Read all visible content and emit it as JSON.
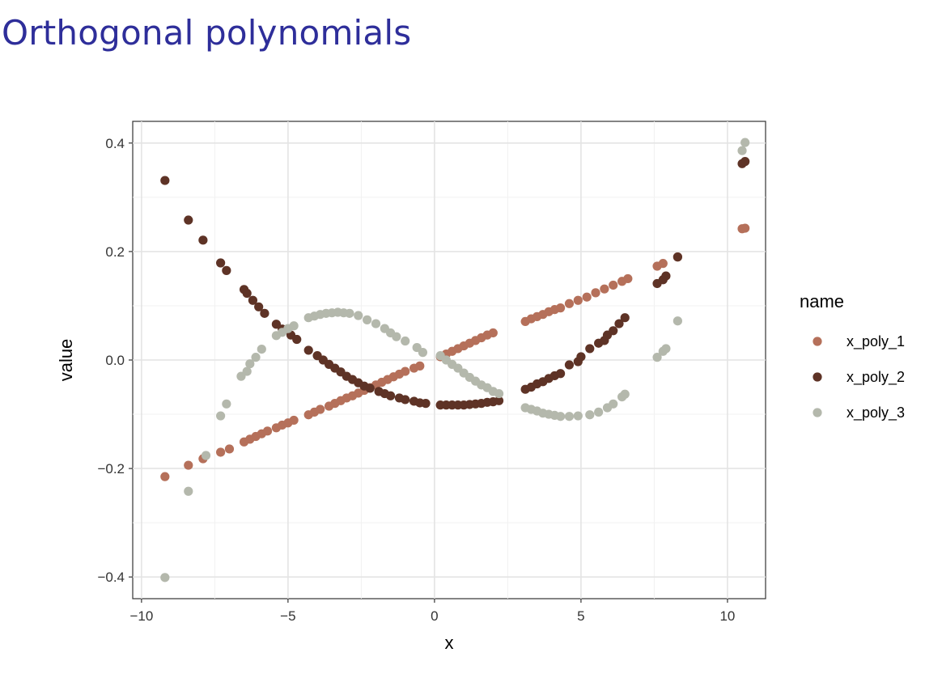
{
  "slide": {
    "title": "Orthogonal polynomials"
  },
  "chart_data": {
    "type": "scatter",
    "title": "",
    "xlabel": "x",
    "ylabel": "value",
    "xlim": [
      -10.3,
      11.3
    ],
    "ylim": [
      -0.44,
      0.44
    ],
    "x_ticks": [
      -10,
      -5,
      0,
      5,
      10
    ],
    "x_tick_labels": [
      "−10",
      "−5",
      "0",
      "5",
      "10"
    ],
    "y_ticks": [
      -0.4,
      -0.2,
      0.0,
      0.2,
      0.4
    ],
    "y_tick_labels": [
      "−0.4",
      "−0.2",
      "0.0",
      "0.2",
      "0.4"
    ],
    "grid": true,
    "legend": {
      "title": "name",
      "position": "right"
    },
    "series": [
      {
        "name": "x_poly_1",
        "color": "#b5705a",
        "points": [
          [
            -9.2,
            -0.215
          ],
          [
            -8.4,
            -0.194
          ],
          [
            -7.9,
            -0.182
          ],
          [
            -7.3,
            -0.17
          ],
          [
            -7.0,
            -0.164
          ],
          [
            -6.5,
            -0.151
          ],
          [
            -6.3,
            -0.146
          ],
          [
            -6.1,
            -0.141
          ],
          [
            -5.9,
            -0.136
          ],
          [
            -5.7,
            -0.131
          ],
          [
            -5.4,
            -0.125
          ],
          [
            -5.2,
            -0.12
          ],
          [
            -5.0,
            -0.116
          ],
          [
            -4.8,
            -0.111
          ],
          [
            -4.3,
            -0.101
          ],
          [
            -4.1,
            -0.096
          ],
          [
            -3.9,
            -0.091
          ],
          [
            -3.6,
            -0.085
          ],
          [
            -3.4,
            -0.08
          ],
          [
            -3.2,
            -0.075
          ],
          [
            -3.0,
            -0.07
          ],
          [
            -2.8,
            -0.066
          ],
          [
            -2.6,
            -0.061
          ],
          [
            -2.4,
            -0.056
          ],
          [
            -2.2,
            -0.051
          ],
          [
            -2.0,
            -0.046
          ],
          [
            -1.8,
            -0.041
          ],
          [
            -1.6,
            -0.036
          ],
          [
            -1.4,
            -0.031
          ],
          [
            -1.2,
            -0.026
          ],
          [
            -1.0,
            -0.021
          ],
          [
            -0.7,
            -0.015
          ],
          [
            -0.5,
            -0.011
          ],
          [
            0.2,
            0.006
          ],
          [
            0.4,
            0.011
          ],
          [
            0.6,
            0.016
          ],
          [
            0.8,
            0.021
          ],
          [
            1.0,
            0.026
          ],
          [
            1.2,
            0.031
          ],
          [
            1.4,
            0.036
          ],
          [
            1.6,
            0.041
          ],
          [
            1.8,
            0.046
          ],
          [
            2.0,
            0.05
          ],
          [
            3.1,
            0.071
          ],
          [
            3.3,
            0.076
          ],
          [
            3.5,
            0.08
          ],
          [
            3.7,
            0.084
          ],
          [
            3.9,
            0.089
          ],
          [
            4.1,
            0.093
          ],
          [
            4.3,
            0.096
          ],
          [
            4.6,
            0.104
          ],
          [
            4.9,
            0.11
          ],
          [
            5.2,
            0.116
          ],
          [
            5.5,
            0.124
          ],
          [
            5.8,
            0.131
          ],
          [
            6.1,
            0.138
          ],
          [
            6.4,
            0.145
          ],
          [
            6.6,
            0.15
          ],
          [
            7.6,
            0.173
          ],
          [
            7.8,
            0.178
          ],
          [
            8.3,
            0.19
          ],
          [
            10.5,
            0.242
          ],
          [
            10.6,
            0.243
          ]
        ]
      },
      {
        "name": "x_poly_2",
        "color": "#5e3326",
        "points": [
          [
            -9.2,
            0.331
          ],
          [
            -8.4,
            0.258
          ],
          [
            -7.9,
            0.221
          ],
          [
            -7.3,
            0.179
          ],
          [
            -7.1,
            0.165
          ],
          [
            -6.5,
            0.13
          ],
          [
            -6.4,
            0.123
          ],
          [
            -6.2,
            0.11
          ],
          [
            -6.0,
            0.098
          ],
          [
            -5.8,
            0.086
          ],
          [
            -5.4,
            0.066
          ],
          [
            -5.2,
            0.057
          ],
          [
            -4.9,
            0.046
          ],
          [
            -4.7,
            0.038
          ],
          [
            -4.3,
            0.018
          ],
          [
            -4.0,
            0.008
          ],
          [
            -3.8,
            0.0
          ],
          [
            -3.6,
            -0.008
          ],
          [
            -3.4,
            -0.015
          ],
          [
            -3.2,
            -0.022
          ],
          [
            -3.0,
            -0.03
          ],
          [
            -2.8,
            -0.036
          ],
          [
            -2.6,
            -0.042
          ],
          [
            -2.4,
            -0.048
          ],
          [
            -2.2,
            -0.052
          ],
          [
            -1.9,
            -0.058
          ],
          [
            -1.7,
            -0.062
          ],
          [
            -1.5,
            -0.066
          ],
          [
            -1.2,
            -0.07
          ],
          [
            -1.0,
            -0.073
          ],
          [
            -0.7,
            -0.076
          ],
          [
            -0.5,
            -0.079
          ],
          [
            -0.3,
            -0.08
          ],
          [
            0.2,
            -0.083
          ],
          [
            0.4,
            -0.083
          ],
          [
            0.6,
            -0.083
          ],
          [
            0.8,
            -0.083
          ],
          [
            1.0,
            -0.083
          ],
          [
            1.2,
            -0.082
          ],
          [
            1.4,
            -0.081
          ],
          [
            1.6,
            -0.08
          ],
          [
            1.8,
            -0.078
          ],
          [
            2.0,
            -0.077
          ],
          [
            2.2,
            -0.075
          ],
          [
            3.1,
            -0.054
          ],
          [
            3.3,
            -0.05
          ],
          [
            3.5,
            -0.044
          ],
          [
            3.7,
            -0.04
          ],
          [
            3.9,
            -0.034
          ],
          [
            4.1,
            -0.029
          ],
          [
            4.3,
            -0.025
          ],
          [
            4.6,
            -0.009
          ],
          [
            4.9,
            -0.003
          ],
          [
            5.0,
            0.006
          ],
          [
            5.3,
            0.021
          ],
          [
            5.6,
            0.031
          ],
          [
            5.8,
            0.036
          ],
          [
            5.9,
            0.046
          ],
          [
            6.1,
            0.054
          ],
          [
            6.3,
            0.067
          ],
          [
            6.5,
            0.078
          ],
          [
            7.6,
            0.141
          ],
          [
            7.8,
            0.148
          ],
          [
            7.9,
            0.155
          ],
          [
            8.3,
            0.19
          ],
          [
            10.5,
            0.362
          ],
          [
            10.6,
            0.366
          ]
        ]
      },
      {
        "name": "x_poly_3",
        "color": "#b4b8ac",
        "points": [
          [
            -9.2,
            -0.401
          ],
          [
            -8.4,
            -0.242
          ],
          [
            -7.8,
            -0.176
          ],
          [
            -7.3,
            -0.103
          ],
          [
            -7.1,
            -0.081
          ],
          [
            -6.6,
            -0.03
          ],
          [
            -6.4,
            -0.021
          ],
          [
            -6.3,
            -0.007
          ],
          [
            -6.1,
            0.005
          ],
          [
            -5.9,
            0.02
          ],
          [
            -5.4,
            0.045
          ],
          [
            -5.2,
            0.051
          ],
          [
            -5.0,
            0.058
          ],
          [
            -4.8,
            0.063
          ],
          [
            -4.3,
            0.078
          ],
          [
            -4.1,
            0.081
          ],
          [
            -3.9,
            0.084
          ],
          [
            -3.7,
            0.086
          ],
          [
            -3.5,
            0.087
          ],
          [
            -3.3,
            0.088
          ],
          [
            -3.1,
            0.087
          ],
          [
            -2.9,
            0.086
          ],
          [
            -2.6,
            0.082
          ],
          [
            -2.3,
            0.074
          ],
          [
            -2.0,
            0.067
          ],
          [
            -1.7,
            0.058
          ],
          [
            -1.5,
            0.05
          ],
          [
            -1.3,
            0.043
          ],
          [
            -1.0,
            0.035
          ],
          [
            -0.6,
            0.023
          ],
          [
            -0.4,
            0.014
          ],
          [
            0.2,
            0.008
          ],
          [
            0.4,
            0.0
          ],
          [
            0.6,
            -0.008
          ],
          [
            0.8,
            -0.015
          ],
          [
            1.0,
            -0.024
          ],
          [
            1.2,
            -0.032
          ],
          [
            1.4,
            -0.039
          ],
          [
            1.6,
            -0.046
          ],
          [
            1.8,
            -0.051
          ],
          [
            2.0,
            -0.058
          ],
          [
            2.2,
            -0.062
          ],
          [
            3.1,
            -0.088
          ],
          [
            3.3,
            -0.091
          ],
          [
            3.5,
            -0.094
          ],
          [
            3.7,
            -0.098
          ],
          [
            3.9,
            -0.1
          ],
          [
            4.1,
            -0.102
          ],
          [
            4.3,
            -0.104
          ],
          [
            4.6,
            -0.104
          ],
          [
            4.9,
            -0.103
          ],
          [
            5.3,
            -0.101
          ],
          [
            5.6,
            -0.096
          ],
          [
            5.9,
            -0.088
          ],
          [
            6.1,
            -0.081
          ],
          [
            6.4,
            -0.068
          ],
          [
            6.5,
            -0.063
          ],
          [
            7.6,
            0.005
          ],
          [
            7.8,
            0.016
          ],
          [
            7.9,
            0.021
          ],
          [
            8.3,
            0.072
          ],
          [
            10.5,
            0.386
          ],
          [
            10.6,
            0.401
          ]
        ]
      }
    ]
  }
}
